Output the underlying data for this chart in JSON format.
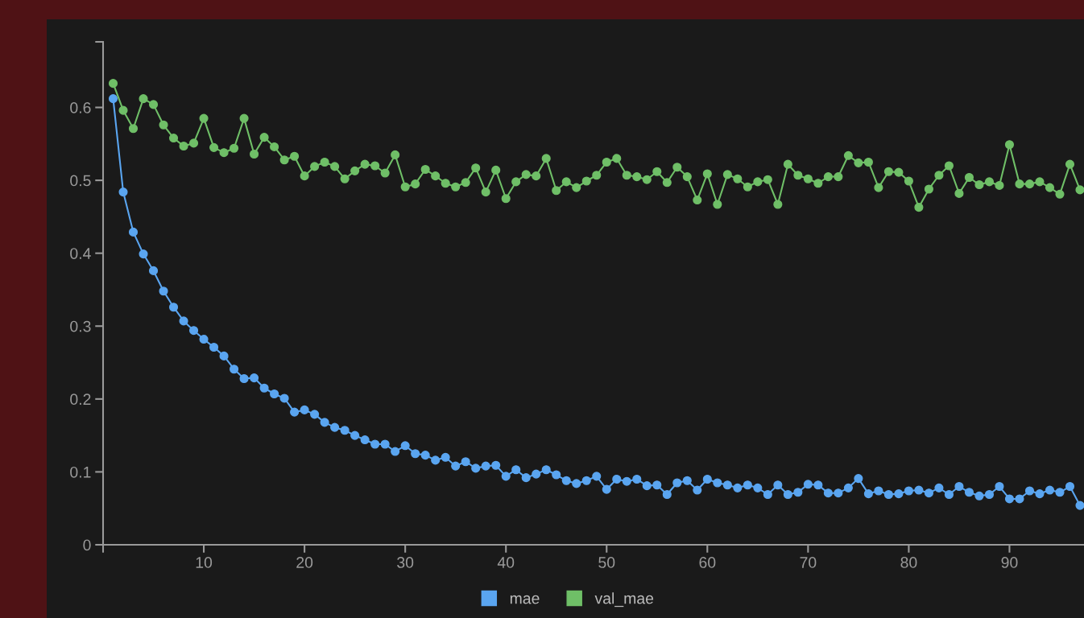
{
  "chart_data": {
    "type": "line",
    "marker": "circle",
    "line_style": "solid",
    "legend": "bottom",
    "grid": false,
    "x": [
      1,
      2,
      3,
      4,
      5,
      6,
      7,
      8,
      9,
      10,
      11,
      12,
      13,
      14,
      15,
      16,
      17,
      18,
      19,
      20,
      21,
      22,
      23,
      24,
      25,
      26,
      27,
      28,
      29,
      30,
      31,
      32,
      33,
      34,
      35,
      36,
      37,
      38,
      39,
      40,
      41,
      42,
      43,
      44,
      45,
      46,
      47,
      48,
      49,
      50,
      51,
      52,
      53,
      54,
      55,
      56,
      57,
      58,
      59,
      60,
      61,
      62,
      63,
      64,
      65,
      66,
      67,
      68,
      69,
      70,
      71,
      72,
      73,
      74,
      75,
      76,
      77,
      78,
      79,
      80,
      81,
      82,
      83,
      84,
      85,
      86,
      87,
      88,
      89,
      90,
      91,
      92,
      93,
      94,
      95,
      96,
      97
    ],
    "xlim": [
      0,
      97.4
    ],
    "xticks": [
      {
        "value": 0,
        "label": null
      },
      10,
      20,
      30,
      40,
      50,
      60,
      70,
      80,
      90
    ],
    "ylim": [
      0,
      0.69
    ],
    "yticks": [
      0,
      0.1,
      0.2,
      0.3,
      0.4,
      0.5,
      0.6,
      {
        "value": 0.69,
        "label": null
      }
    ],
    "series": [
      {
        "name": "mae",
        "color": "#5aa5f0",
        "values": [
          0.612,
          0.484,
          0.429,
          0.399,
          0.376,
          0.348,
          0.326,
          0.307,
          0.294,
          0.282,
          0.271,
          0.259,
          0.241,
          0.228,
          0.229,
          0.215,
          0.207,
          0.201,
          0.182,
          0.185,
          0.179,
          0.168,
          0.161,
          0.157,
          0.15,
          0.144,
          0.138,
          0.138,
          0.128,
          0.136,
          0.125,
          0.123,
          0.116,
          0.12,
          0.108,
          0.114,
          0.105,
          0.108,
          0.109,
          0.094,
          0.103,
          0.092,
          0.097,
          0.103,
          0.096,
          0.088,
          0.084,
          0.088,
          0.094,
          0.076,
          0.09,
          0.087,
          0.09,
          0.081,
          0.082,
          0.069,
          0.085,
          0.088,
          0.075,
          0.09,
          0.085,
          0.082,
          0.078,
          0.082,
          0.078,
          0.069,
          0.082,
          0.069,
          0.072,
          0.083,
          0.082,
          0.071,
          0.071,
          0.078,
          0.091,
          0.07,
          0.074,
          0.069,
          0.07,
          0.074,
          0.075,
          0.071,
          0.078,
          0.069,
          0.08,
          0.072,
          0.067,
          0.069,
          0.08,
          0.063,
          0.063,
          0.074,
          0.07,
          0.075,
          0.072,
          0.08,
          0.054
        ]
      },
      {
        "name": "val_mae",
        "color": "#6fbf67",
        "values": [
          0.633,
          0.596,
          0.571,
          0.612,
          0.604,
          0.576,
          0.558,
          0.547,
          0.551,
          0.585,
          0.545,
          0.538,
          0.544,
          0.585,
          0.536,
          0.559,
          0.546,
          0.528,
          0.533,
          0.506,
          0.519,
          0.525,
          0.519,
          0.502,
          0.513,
          0.522,
          0.52,
          0.51,
          0.535,
          0.491,
          0.495,
          0.515,
          0.506,
          0.496,
          0.491,
          0.497,
          0.517,
          0.484,
          0.514,
          0.475,
          0.498,
          0.508,
          0.506,
          0.53,
          0.486,
          0.498,
          0.49,
          0.499,
          0.507,
          0.525,
          0.53,
          0.507,
          0.505,
          0.501,
          0.512,
          0.497,
          0.518,
          0.505,
          0.473,
          0.509,
          0.467,
          0.508,
          0.502,
          0.491,
          0.498,
          0.501,
          0.467,
          0.522,
          0.507,
          0.502,
          0.496,
          0.505,
          0.505,
          0.534,
          0.524,
          0.525,
          0.49,
          0.512,
          0.511,
          0.499,
          0.463,
          0.488,
          0.507,
          0.52,
          0.482,
          0.504,
          0.494,
          0.498,
          0.493,
          0.549,
          0.495,
          0.495,
          0.498,
          0.49,
          0.481,
          0.522,
          0.487
        ]
      }
    ]
  }
}
